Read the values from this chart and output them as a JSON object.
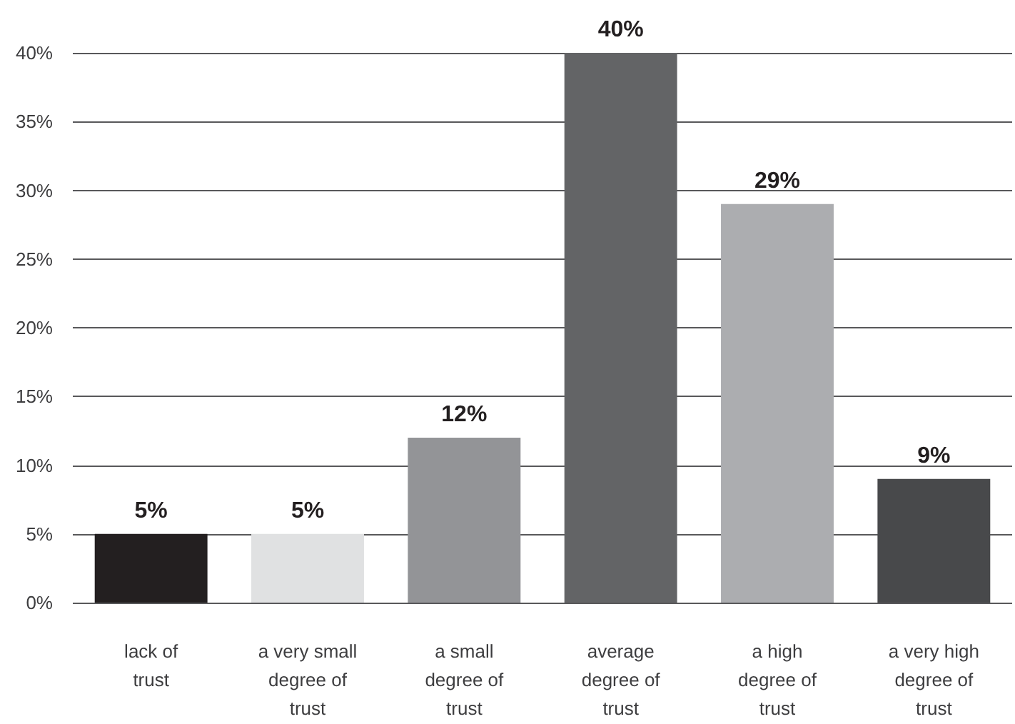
{
  "chart_data": {
    "type": "bar",
    "categories": [
      "lack of trust",
      "a very small degree of trust",
      "a small degree of trust",
      "average degree of trust",
      "a high degree of trust",
      "a very high degree of trust"
    ],
    "values": [
      5,
      5,
      12,
      40,
      29,
      9
    ],
    "colors": [
      "#231f20",
      "#e0e1e2",
      "#939497",
      "#636466",
      "#acadb0",
      "#48494b"
    ],
    "value_labels": [
      "5%",
      "5%",
      "12%",
      "40%",
      "29%",
      "9%"
    ],
    "ylim": [
      0,
      40
    ],
    "yticks": [
      {
        "value": 0,
        "label": "0%"
      },
      {
        "value": 5,
        "label": "5%"
      },
      {
        "value": 10,
        "label": "10%"
      },
      {
        "value": 15,
        "label": "15%"
      },
      {
        "value": 20,
        "label": "20%"
      },
      {
        "value": 25,
        "label": "25%"
      },
      {
        "value": 30,
        "label": "30%"
      },
      {
        "value": 35,
        "label": "35%"
      },
      {
        "value": 40,
        "label": "40%"
      }
    ],
    "grid": "y"
  }
}
